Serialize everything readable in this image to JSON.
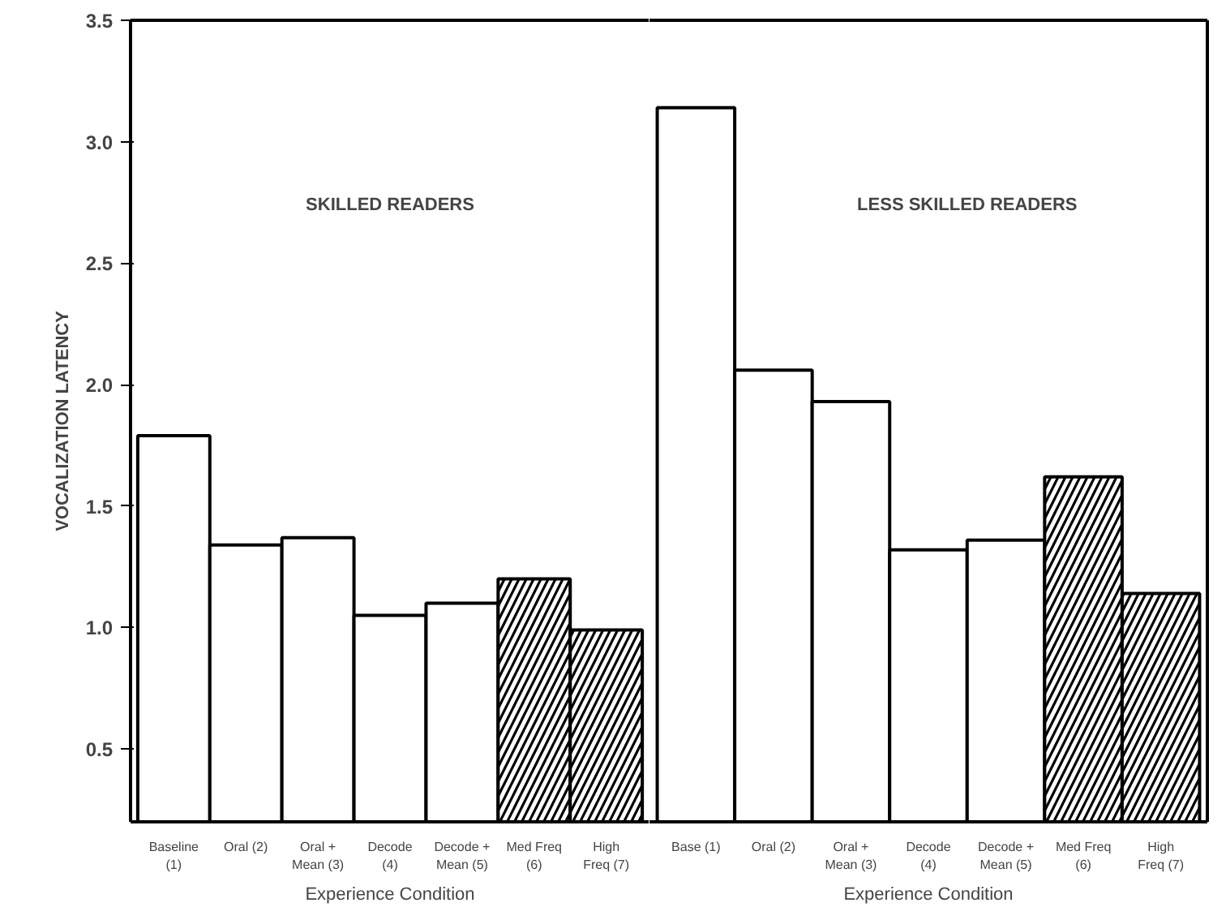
{
  "chart_data": [
    {
      "type": "bar",
      "title": "SKILLED READERS",
      "xlabel": "Experience Condition",
      "ylabel": "VOCALIZATION LATENCY",
      "categories": [
        "Baseline (1)",
        "Oral (2)",
        "Oral + Mean (3)",
        "Decode (4)",
        "Decode + Mean (5)",
        "Med Freq (6)",
        "High Freq (7)"
      ],
      "series": [
        {
          "color": "#ffffff",
          "values": [
            1.79,
            1.34,
            1.37,
            1.05,
            1.1,
            null,
            null
          ]
        },
        {
          "color": "#000000",
          "values": [
            null,
            null,
            null,
            null,
            null,
            1.2,
            0.99
          ]
        }
      ],
      "ylim": [
        0.2,
        3.5
      ],
      "yticks": [
        {
          "value": 0.5,
          "label": "0.5"
        },
        {
          "value": 1.0,
          "label": "1.0"
        },
        {
          "value": 1.5,
          "label": "1.5"
        },
        {
          "value": 2.0,
          "label": "2.0"
        },
        {
          "value": 2.5,
          "label": "2.5"
        },
        {
          "value": 3.0,
          "label": "3.0"
        },
        {
          "value": 3.5,
          "label": "3.5"
        }
      ],
      "grid": false
    },
    {
      "type": "bar",
      "title": "LESS SKILLED READERS",
      "xlabel": "Experience Condition",
      "categories": [
        "Base (1)",
        "Oral (2)",
        "Oral + Mean (3)",
        "Decode (4)",
        "Decode + Mean (5)",
        "Med Freq (6)",
        "High Freq (7)"
      ],
      "series": [
        {
          "color": "#ffffff",
          "values": [
            3.14,
            2.06,
            1.93,
            1.32,
            1.36,
            null,
            null
          ]
        },
        {
          "color": "#000000",
          "values": [
            null,
            null,
            null,
            null,
            null,
            1.62,
            1.14
          ]
        }
      ],
      "ylim": [
        0.2,
        3.5
      ],
      "tick_labels": "x",
      "grid": false
    }
  ]
}
